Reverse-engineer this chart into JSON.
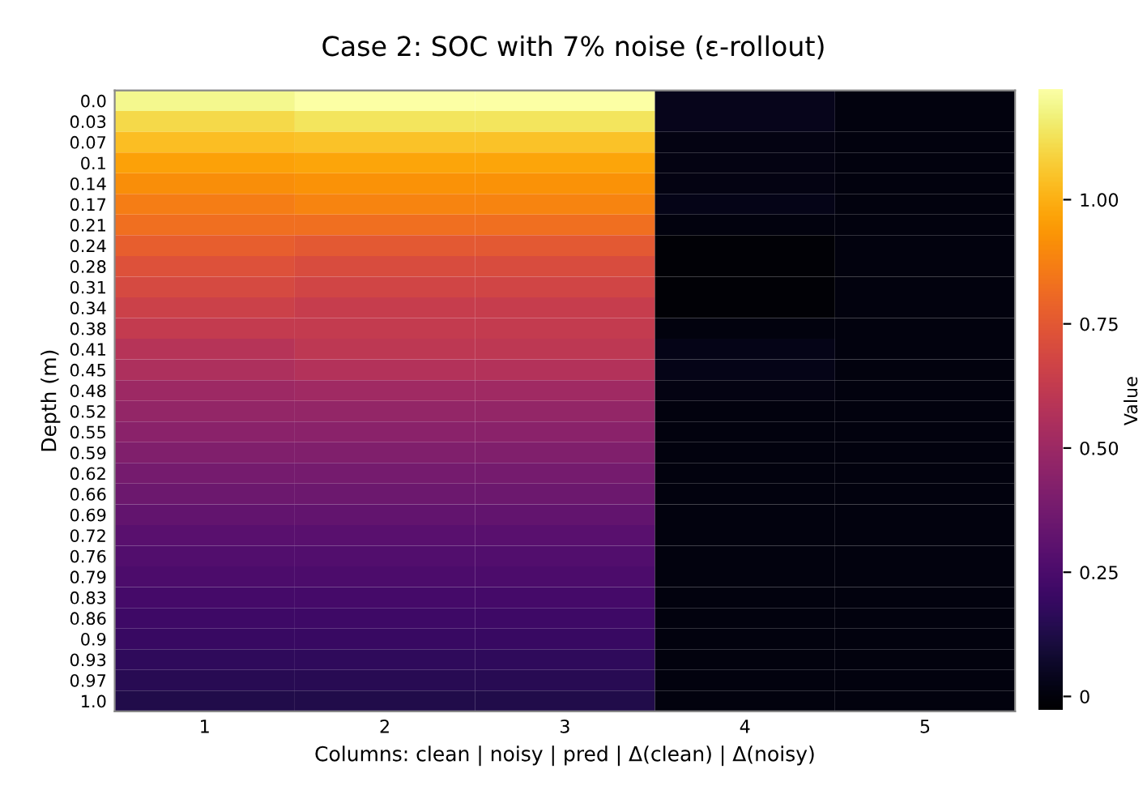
{
  "chart_data": {
    "type": "heatmap",
    "title": "Case 2: SOC with 7% noise (ε-rollout)",
    "xlabel": "Columns: clean | noisy | pred | Δ(clean) | Δ(noisy)",
    "ylabel": "Depth (m)",
    "clabel": "Value",
    "categories": [
      "1",
      "2",
      "3",
      "4",
      "5"
    ],
    "y_categories": [
      "0.0",
      "0.03",
      "0.07",
      "0.1",
      "0.14",
      "0.17",
      "0.21",
      "0.24",
      "0.28",
      "0.31",
      "0.34",
      "0.38",
      "0.41",
      "0.45",
      "0.48",
      "0.52",
      "0.55",
      "0.59",
      "0.62",
      "0.66",
      "0.69",
      "0.72",
      "0.76",
      "0.79",
      "0.83",
      "0.86",
      "0.9",
      "0.93",
      "0.97",
      "1.0"
    ],
    "cells": [
      [
        1.19,
        1.22,
        1.22,
        0.03,
        0.0
      ],
      [
        1.1,
        1.13,
        1.13,
        0.03,
        0.0
      ],
      [
        1.03,
        1.04,
        1.04,
        0.01,
        0.0
      ],
      [
        0.96,
        0.97,
        0.97,
        0.01,
        0.0
      ],
      [
        0.91,
        0.92,
        0.92,
        0.01,
        0.0
      ],
      [
        0.86,
        0.88,
        0.88,
        0.02,
        0.0
      ],
      [
        0.82,
        0.82,
        0.82,
        0.0,
        0.0
      ],
      [
        0.77,
        0.75,
        0.75,
        -0.02,
        0.0
      ],
      [
        0.72,
        0.7,
        0.7,
        -0.02,
        0.0
      ],
      [
        0.69,
        0.67,
        0.67,
        -0.02,
        0.0
      ],
      [
        0.65,
        0.63,
        0.63,
        -0.02,
        0.0
      ],
      [
        0.62,
        0.62,
        0.62,
        0.0,
        0.0
      ],
      [
        0.58,
        0.6,
        0.6,
        0.02,
        0.0
      ],
      [
        0.55,
        0.57,
        0.57,
        0.02,
        0.0
      ],
      [
        0.5,
        0.51,
        0.51,
        0.01,
        0.0
      ],
      [
        0.47,
        0.47,
        0.47,
        0.0,
        0.0
      ],
      [
        0.44,
        0.44,
        0.44,
        0.0,
        0.0
      ],
      [
        0.41,
        0.41,
        0.41,
        0.0,
        0.0
      ],
      [
        0.38,
        0.38,
        0.38,
        0.0,
        0.0
      ],
      [
        0.35,
        0.35,
        0.35,
        0.0,
        0.0
      ],
      [
        0.32,
        0.32,
        0.32,
        0.0,
        0.0
      ],
      [
        0.29,
        0.29,
        0.29,
        0.0,
        0.0
      ],
      [
        0.27,
        0.27,
        0.27,
        0.0,
        0.0
      ],
      [
        0.25,
        0.25,
        0.25,
        0.0,
        0.0
      ],
      [
        0.23,
        0.23,
        0.23,
        0.0,
        0.0
      ],
      [
        0.21,
        0.21,
        0.21,
        0.0,
        0.0
      ],
      [
        0.19,
        0.19,
        0.19,
        0.0,
        0.0
      ],
      [
        0.17,
        0.17,
        0.17,
        0.0,
        0.0
      ],
      [
        0.15,
        0.15,
        0.15,
        0.0,
        0.0
      ],
      [
        0.13,
        0.13,
        0.13,
        0.0,
        0.0
      ]
    ],
    "clim": [
      -0.03,
      1.22
    ],
    "cticks": [
      {
        "value": 0,
        "label": "0"
      },
      {
        "value": 0.25,
        "label": "0.25"
      },
      {
        "value": 0.5,
        "label": "0.50"
      },
      {
        "value": 0.75,
        "label": "0.75"
      },
      {
        "value": 1.0,
        "label": "1.00"
      }
    ],
    "grid": false
  }
}
